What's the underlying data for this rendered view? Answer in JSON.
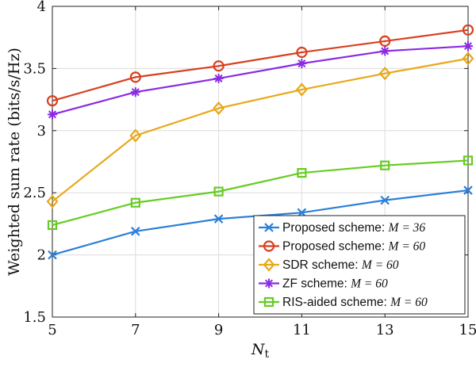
{
  "chart_data": {
    "type": "line",
    "xlabel_main": "N",
    "xlabel_sub": "t",
    "ylabel": "Weighted sum rate (bits/s/Hz)",
    "xlim": [
      5,
      15
    ],
    "ylim": [
      1.5,
      4
    ],
    "x_ticks": [
      5,
      7,
      9,
      11,
      13,
      15
    ],
    "y_ticks": [
      1.5,
      2,
      2.5,
      3,
      3.5,
      4
    ],
    "y_tick_labels": [
      "1.5",
      "2",
      "2.5",
      "3",
      "3.5",
      "4"
    ],
    "grid": true,
    "legend_position": "bottom-right",
    "x": [
      5,
      7,
      9,
      11,
      13,
      15
    ],
    "series": [
      {
        "name": "Proposed scheme: ",
        "math": "M = 36",
        "color": "#2a7fd9",
        "marker": "x",
        "values": [
          2.0,
          2.19,
          2.29,
          2.34,
          2.44,
          2.52
        ]
      },
      {
        "name": "Proposed scheme: ",
        "math": "M = 60",
        "color": "#d9401f",
        "marker": "circle",
        "values": [
          3.24,
          3.43,
          3.52,
          3.63,
          3.72,
          3.81
        ]
      },
      {
        "name": "SDR scheme: ",
        "math": "M = 60",
        "color": "#e8a818",
        "marker": "diamond",
        "values": [
          2.43,
          2.96,
          3.18,
          3.33,
          3.46,
          3.58
        ]
      },
      {
        "name": "ZF scheme: ",
        "math": "M = 60",
        "color": "#8a2be2",
        "marker": "asterisk",
        "values": [
          3.13,
          3.31,
          3.42,
          3.54,
          3.64,
          3.68
        ]
      },
      {
        "name": "RIS-aided scheme: ",
        "math": "M = 60",
        "color": "#66cc22",
        "marker": "square",
        "values": [
          2.24,
          2.42,
          2.51,
          2.66,
          2.72,
          2.76
        ]
      }
    ]
  }
}
